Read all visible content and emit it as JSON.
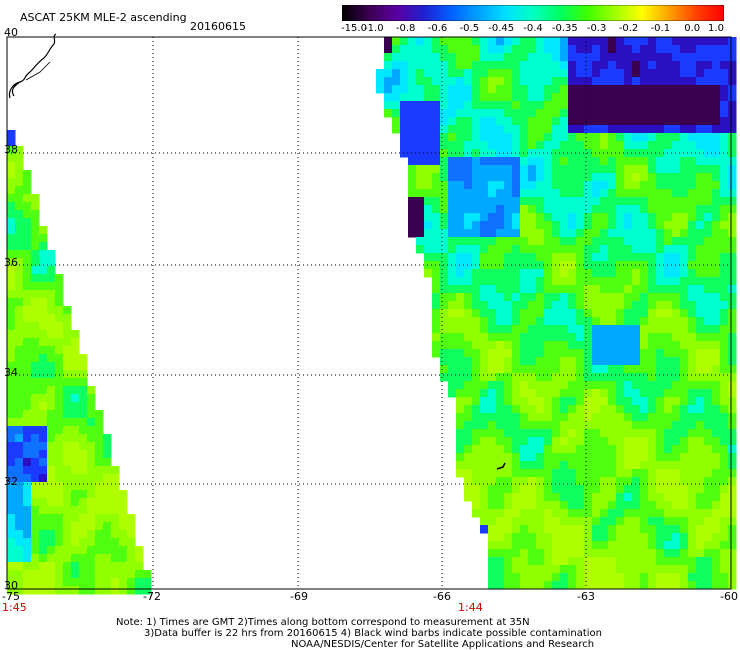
{
  "header": {
    "title": "ASCAT 25KM MLE-2 ascending",
    "date": "20160615"
  },
  "colorbar": {
    "labels": [
      "-15.0",
      "-1.0",
      "-0.8",
      "-0.6",
      "-0.5",
      "-0.45",
      "-0.4",
      "-0.35",
      "-0.3",
      "-0.2",
      "-0.1",
      "0.0",
      "1.0"
    ],
    "colors": [
      "#000000",
      "#3a0050",
      "#5a00a0",
      "#2020d0",
      "#0060ff",
      "#00a0ff",
      "#00e0ff",
      "#00ffc0",
      "#00ff60",
      "#40ff00",
      "#a0ff00",
      "#ffff00",
      "#ffa000",
      "#ff4000",
      "#ff0000"
    ]
  },
  "axes": {
    "lon_labels": [
      "-75",
      "-72",
      "-69",
      "-66",
      "-63",
      "-60"
    ],
    "lat_labels": [
      "40",
      "38",
      "36",
      "34",
      "32",
      "30"
    ]
  },
  "times": {
    "left": "1:45",
    "right": "1:44"
  },
  "notes": {
    "line1": "Note: 1) Times are GMT 2)Times along bottom correspond to measurement at 35N",
    "line2": "3)Data buffer is 22 hrs from 20160615 4) Black wind barbs indicate possible contamination",
    "line3": "NOAA/NESDIS/Center for Satellite Applications and Research"
  }
}
